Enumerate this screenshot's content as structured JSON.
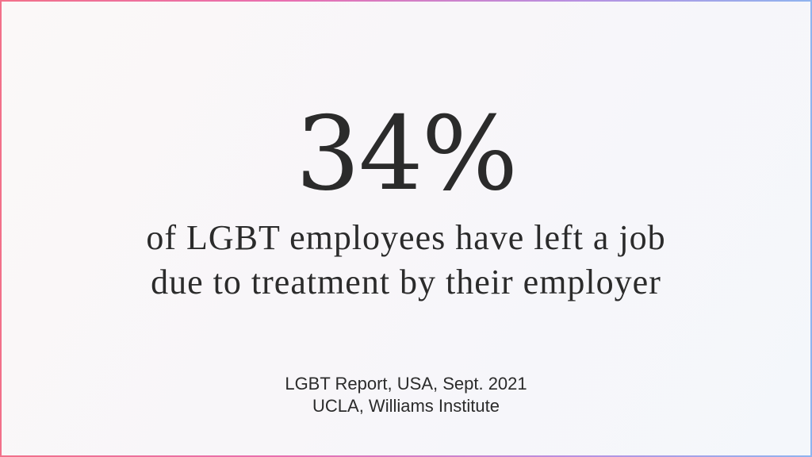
{
  "slide": {
    "stat": "34%",
    "caption_line1": "of LGBT employees have left a job",
    "caption_line2": "due to treatment by their employer",
    "source_line1": "LGBT Report, USA, Sept. 2021",
    "source_line2": "UCLA, Williams Institute"
  },
  "colors": {
    "text": "#2b2b2b",
    "border_start": "#f2708a",
    "border_end": "#8fb4ef"
  }
}
